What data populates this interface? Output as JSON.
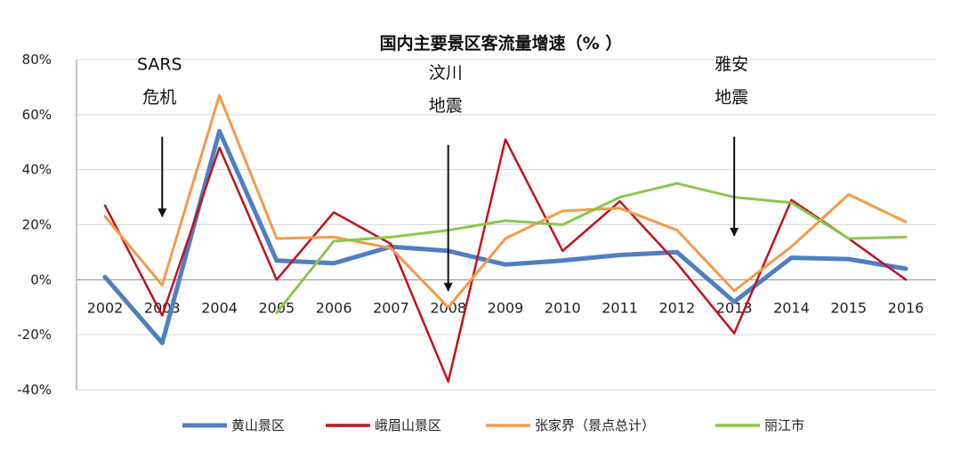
{
  "chart_data": {
    "type": "line",
    "title": "国内主要景区客流量增速（% ）",
    "xlabel": "",
    "ylabel": "",
    "categories": [
      "2002",
      "2003",
      "2004",
      "2005",
      "2006",
      "2007",
      "2008",
      "2009",
      "2010",
      "2011",
      "2012",
      "2013",
      "2014",
      "2015",
      "2016"
    ],
    "ylim": [
      -40,
      80
    ],
    "yticks": [
      -40,
      -20,
      0,
      20,
      40,
      60,
      80
    ],
    "ytick_labels": [
      "-40%",
      "-20%",
      "0%",
      "20%",
      "40%",
      "60%",
      "80%"
    ],
    "grid": true,
    "legend_position": "bottom",
    "series": [
      {
        "name": "黄山景区",
        "color": "#4F7EC3",
        "width": 5,
        "values": [
          1,
          -23,
          54,
          7,
          6,
          12,
          10.5,
          5.5,
          7,
          9,
          10,
          -8,
          8,
          7.5,
          4
        ]
      },
      {
        "name": "峨眉山景区",
        "color": "#C0141C",
        "width": 2.5,
        "values": [
          27,
          -13,
          48,
          0,
          24.5,
          13,
          -37,
          51,
          10.5,
          28.5,
          6,
          -19.5,
          29,
          15,
          0
        ]
      },
      {
        "name": "张家界（景点总计）",
        "color": "#F59A4A",
        "width": 3,
        "values": [
          23,
          -2,
          67,
          15,
          15.5,
          11.5,
          -10,
          15,
          25,
          26,
          18,
          -4,
          12,
          31,
          21
        ]
      },
      {
        "name": "丽江市",
        "color": "#8BC74A",
        "width": 3,
        "values": [
          null,
          null,
          null,
          -12,
          14,
          15.5,
          18,
          21.5,
          20,
          30,
          35,
          30,
          28,
          15,
          15.5
        ]
      }
    ],
    "annotations": [
      {
        "lines": [
          "SARS",
          "危机"
        ],
        "category": "2003",
        "arrow_from": 52,
        "arrow_to": 23
      },
      {
        "lines": [
          "汶川",
          "地震"
        ],
        "category": "2008",
        "arrow_from": 49,
        "arrow_to": -4
      },
      {
        "lines": [
          "雅安",
          "地震"
        ],
        "category": "2013",
        "arrow_from": 52,
        "arrow_to": 16
      }
    ]
  }
}
